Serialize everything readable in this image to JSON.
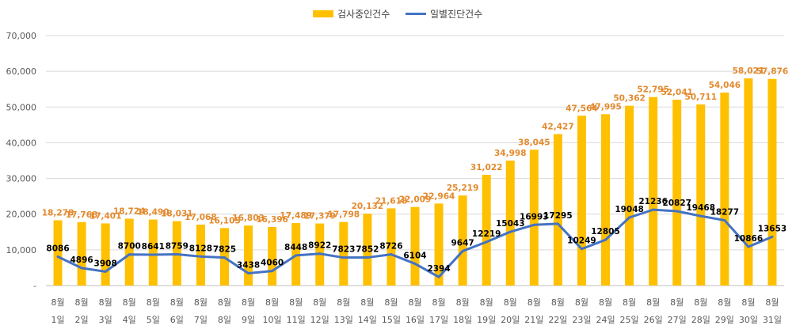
{
  "chart_data": {
    "type": "bar",
    "categories": [
      [
        "8월",
        "1일"
      ],
      [
        "8월",
        "2일"
      ],
      [
        "8월",
        "3일"
      ],
      [
        "8월",
        "4일"
      ],
      [
        "8월",
        "5일"
      ],
      [
        "8월",
        "6일"
      ],
      [
        "8월",
        "7일"
      ],
      [
        "8월",
        "8일"
      ],
      [
        "8월",
        "9일"
      ],
      [
        "8월",
        "10일"
      ],
      [
        "8월",
        "11일"
      ],
      [
        "8월",
        "12일"
      ],
      [
        "8월",
        "13일"
      ],
      [
        "8월",
        "14일"
      ],
      [
        "8월",
        "15일"
      ],
      [
        "8월",
        "16일"
      ],
      [
        "8월",
        "17일"
      ],
      [
        "8월",
        "18일"
      ],
      [
        "8월",
        "19일"
      ],
      [
        "8월",
        "20일"
      ],
      [
        "8월",
        "21일"
      ],
      [
        "8월",
        "22일"
      ],
      [
        "8월",
        "23일"
      ],
      [
        "8월",
        "24일"
      ],
      [
        "8월",
        "25일"
      ],
      [
        "8월",
        "26일"
      ],
      [
        "8월",
        "27일"
      ],
      [
        "8월",
        "28일"
      ],
      [
        "8월",
        "29일"
      ],
      [
        "8월",
        "30일"
      ],
      [
        "8월",
        "31일"
      ]
    ],
    "series": [
      {
        "name": "검사중인건수",
        "type": "bar",
        "color": "#FFC000",
        "label_color": "#E38A2E",
        "values": [
          18278,
          17768,
          17401,
          18724,
          18490,
          18031,
          17068,
          16105,
          16803,
          16396,
          17489,
          17379,
          17798,
          20132,
          21618,
          22009,
          22964,
          25219,
          31022,
          34998,
          38045,
          42427,
          47564,
          47995,
          50362,
          52795,
          52041,
          50711,
          54046,
          58021,
          57876
        ],
        "labels": [
          "18,278",
          "17,768",
          "17,401",
          "18,724",
          "18,490",
          "18,031",
          "17,068",
          "16,105",
          "16,803",
          "16,396",
          "17,489",
          "17,379",
          "17,798",
          "20,132",
          "21,618",
          "22,009",
          "22,964",
          "25,219",
          "31,022",
          "34,998",
          "38,045",
          "42,427",
          "47,564",
          "47,995",
          "50,362",
          "52,795",
          "52,041",
          "50,711",
          "54,046",
          "58,021",
          "57,876"
        ]
      },
      {
        "name": "일별진단건수",
        "type": "line",
        "color": "#4472C4",
        "label_color": "#000000",
        "values": [
          8086,
          4896,
          3908,
          8700,
          8641,
          8759,
          8128,
          7825,
          3438,
          4060,
          8448,
          8922,
          7823,
          7852,
          8726,
          6104,
          2394,
          9647,
          12219,
          15043,
          16993,
          17295,
          10249,
          12805,
          19048,
          21236,
          20827,
          19468,
          18277,
          10866,
          13653
        ],
        "labels": [
          "8086",
          "4896",
          "3908",
          "8700",
          "8641",
          "8759",
          "8128",
          "7825",
          "3438",
          "4060",
          "8448",
          "8922",
          "7823",
          "7852",
          "8726",
          "6104",
          "2394",
          "9647",
          "12219",
          "15043",
          "16993",
          "17295",
          "10249",
          "12805",
          "19048",
          "21236",
          "20827",
          "19468",
          "18277",
          "10866",
          "13653"
        ]
      }
    ],
    "ylim": [
      0,
      70000
    ],
    "yticks": [
      0,
      10000,
      20000,
      30000,
      40000,
      50000,
      60000,
      70000
    ],
    "ytick_labels": [
      "-",
      "10,000",
      "20,000",
      "30,000",
      "40,000",
      "50,000",
      "60,000",
      "70,000"
    ],
    "grid": true,
    "legend_position": "top-center",
    "title": "",
    "xlabel": "",
    "ylabel": ""
  }
}
